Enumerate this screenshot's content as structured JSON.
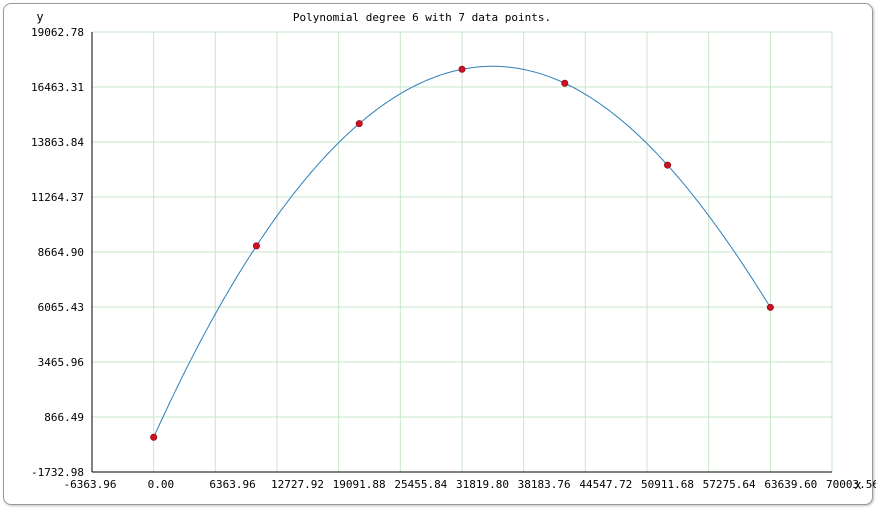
{
  "chart_data": {
    "type": "line",
    "title": "Polynomial degree 6 with 7 data points.",
    "xlabel": "x",
    "ylabel": "y",
    "xlim": [
      -6363.96,
      70003.56
    ],
    "ylim": [
      -1732.98,
      19062.78
    ],
    "x_ticks": [
      "-6363.96",
      "0.00",
      "6363.96",
      "12727.92",
      "19091.88",
      "25455.84",
      "31819.80",
      "38183.76",
      "44547.72",
      "50911.68",
      "57275.64",
      "63639.60",
      "70003.56"
    ],
    "y_ticks": [
      "-1732.98",
      "866.49",
      "3465.96",
      "6065.43",
      "8664.90",
      "11264.37",
      "13863.84",
      "16463.31",
      "19062.78"
    ],
    "grid": true,
    "series": [
      {
        "kind": "points",
        "color": "#cc1122",
        "x": [
          0,
          10606.6,
          21213.2,
          31819.8,
          42426.4,
          53033.0,
          63639.6
        ],
        "y": [
          -90,
          8955,
          14730,
          17300,
          16640,
          12770,
          6050
        ]
      },
      {
        "kind": "fitted-curve",
        "color": "#2e7fb8",
        "degree": 6
      }
    ]
  }
}
